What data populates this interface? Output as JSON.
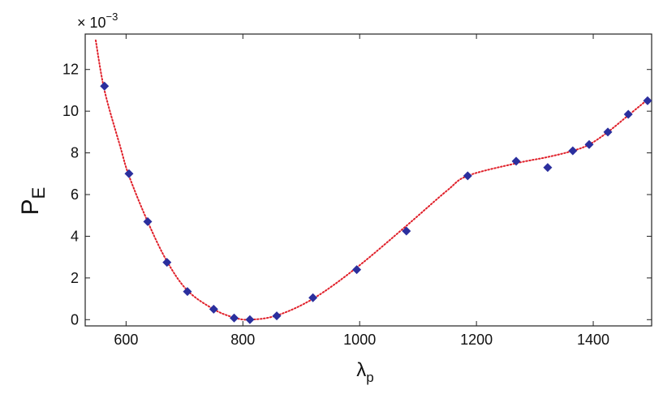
{
  "chart_data": {
    "type": "scatter",
    "title": "",
    "xlabel": "λ",
    "xlabel_sub": "p",
    "ylabel": "P",
    "ylabel_sub": "E",
    "y_multiplier": "× 10",
    "y_multiplier_exp": "−3",
    "xlim": [
      530,
      1500
    ],
    "ylim": [
      -0.3,
      13.7
    ],
    "xticks": [
      600,
      800,
      1000,
      1200,
      1400
    ],
    "yticks": [
      0,
      2,
      4,
      6,
      8,
      10,
      12
    ],
    "grid": false,
    "series": [
      {
        "marker": "diamond",
        "color": "#2b2f9e",
        "x": [
          563,
          605,
          637,
          670,
          705,
          750,
          785,
          812,
          858,
          920,
          995,
          1080,
          1185,
          1268,
          1322,
          1365,
          1393,
          1425,
          1460,
          1493
        ],
        "y": [
          11.2,
          7.0,
          4.7,
          2.75,
          1.35,
          0.5,
          0.08,
          0.0,
          0.18,
          1.05,
          2.4,
          4.25,
          6.9,
          7.6,
          7.3,
          8.1,
          8.4,
          9.0,
          9.85,
          10.5
        ]
      },
      {
        "style": "dotted",
        "color": "#e0202a",
        "x": [
          548,
          563,
          590,
          605,
          637,
          670,
          705,
          750,
          785,
          812,
          858,
          920,
          995,
          1080,
          1150,
          1185,
          1268,
          1322,
          1365,
          1393,
          1425,
          1460,
          1495
        ],
        "y": [
          13.4,
          11.0,
          8.3,
          6.9,
          4.7,
          2.8,
          1.4,
          0.5,
          0.1,
          0.0,
          0.2,
          1.0,
          2.5,
          4.5,
          6.2,
          6.9,
          7.5,
          7.8,
          8.1,
          8.4,
          9.0,
          9.8,
          10.6
        ]
      }
    ]
  }
}
